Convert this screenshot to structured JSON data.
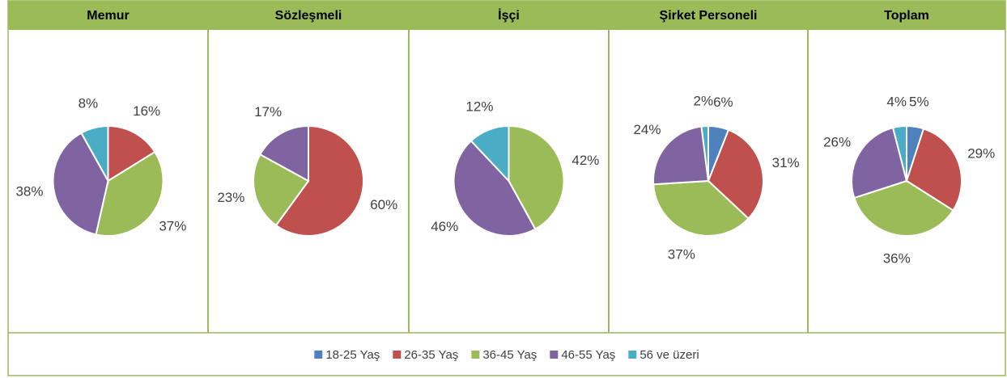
{
  "legend": {
    "labels": [
      "18-25 Yaş",
      "26-35 Yaş",
      "36-45 Yaş",
      "46-55 Yaş",
      "56 ve üzeri"
    ],
    "colors": [
      "#4f81bd",
      "#c0504d",
      "#9bbb59",
      "#8064a2",
      "#4bacc6"
    ]
  },
  "chart_data": [
    {
      "type": "pie",
      "title": "Memur",
      "values": [
        null,
        16,
        37,
        38,
        8
      ],
      "value_labels": [
        null,
        "16%",
        "37%",
        "38%",
        "8%"
      ]
    },
    {
      "type": "pie",
      "title": "Sözleşmeli",
      "values": [
        null,
        60,
        23,
        17,
        null
      ],
      "value_labels": [
        null,
        "60%",
        "23%",
        "17%",
        null
      ]
    },
    {
      "type": "pie",
      "title": "İşçi",
      "values": [
        null,
        null,
        42,
        46,
        12
      ],
      "value_labels": [
        null,
        null,
        "42%",
        "46%",
        "12%"
      ]
    },
    {
      "type": "pie",
      "title": "Şirket Personeli",
      "values": [
        6,
        31,
        37,
        24,
        2
      ],
      "value_labels": [
        "6%",
        "31%",
        "37%",
        "24%",
        "2%"
      ]
    },
    {
      "type": "pie",
      "title": "Toplam",
      "values": [
        5,
        29,
        36,
        26,
        4
      ],
      "value_labels": [
        "5%",
        "29%",
        "36%",
        "26%",
        "4%"
      ]
    }
  ]
}
